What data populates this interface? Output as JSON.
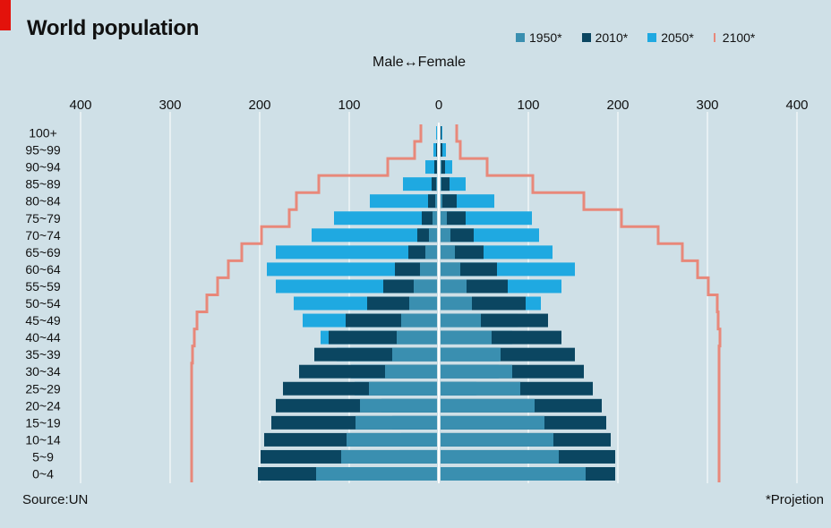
{
  "header": {
    "title": "World population",
    "subtitle": "Male↔Female"
  },
  "legend": [
    {
      "label": "1950*",
      "color": "#3a8fb0"
    },
    {
      "label": "2010*",
      "color": "#0b4661"
    },
    {
      "label": "2050*",
      "color": "#1fa9e1"
    },
    {
      "label": "2100*",
      "color": "#e8887a"
    }
  ],
  "footer": {
    "source": "Source:UN",
    "note": "*Projetion"
  },
  "chart_data": {
    "type": "bar",
    "orientation": "horizontal-population-pyramid",
    "title": "World population",
    "xlabel": "Male↔Female",
    "xlim": [
      -400,
      400
    ],
    "x_ticks": [
      {
        "value": -400,
        "label": "400"
      },
      {
        "value": -300,
        "label": "300"
      },
      {
        "value": -200,
        "label": "200"
      },
      {
        "value": -100,
        "label": "100"
      },
      {
        "value": 0,
        "label": "0"
      },
      {
        "value": 100,
        "label": "100"
      },
      {
        "value": 200,
        "label": "200"
      },
      {
        "value": 300,
        "label": "300"
      },
      {
        "value": 400,
        "label": "400"
      }
    ],
    "grid": true,
    "legend_position": "top-right",
    "categories": [
      "100+",
      "95~99",
      "90~94",
      "85~89",
      "80~84",
      "75~79",
      "70~74",
      "65~69",
      "60~64",
      "55~59",
      "50~54",
      "45~49",
      "40~44",
      "35~39",
      "30~34",
      "25~29",
      "20~24",
      "15~19",
      "10~14",
      "5~9",
      "0~4"
    ],
    "series": [
      {
        "name": "1950*",
        "color": "#3a8fb0",
        "male": [
          0,
          0,
          0,
          1,
          2,
          5,
          9,
          13,
          19,
          26,
          31,
          40,
          45,
          50,
          58,
          76,
          86,
          91,
          101,
          107,
          135
        ],
        "female": [
          0,
          0,
          1,
          1,
          2,
          7,
          11,
          16,
          22,
          29,
          35,
          45,
          57,
          67,
          80,
          89,
          105,
          116,
          126,
          132,
          162
        ]
      },
      {
        "name": "2010*",
        "color": "#0b4661",
        "male": [
          0,
          1,
          3,
          6,
          10,
          17,
          22,
          32,
          47,
          60,
          78,
          102,
          121,
          137,
          154,
          172,
          180,
          185,
          193,
          197,
          200
        ],
        "female": [
          1,
          2,
          5,
          10,
          18,
          28,
          37,
          48,
          63,
          75,
          95,
          120,
          135,
          150,
          160,
          170,
          180,
          185,
          190,
          195,
          195
        ]
      },
      {
        "name": "2050*",
        "color": "#1fa9e1",
        "male": [
          1,
          4,
          13,
          38,
          75,
          115,
          140,
          180,
          190,
          180,
          160,
          150,
          130,
          112,
          96,
          92,
          62,
          50,
          40,
          42,
          42
        ],
        "female": [
          2,
          6,
          13,
          28,
          60,
          102,
          110,
          125,
          150,
          135,
          112,
          86,
          80,
          65,
          65,
          40,
          0,
          0,
          0,
          0,
          0
        ]
      }
    ],
    "outline_2100": {
      "name": "2100*",
      "color": "#e8887a",
      "male": [
        18,
        25,
        55,
        132,
        157,
        165,
        196,
        218,
        233,
        245,
        257,
        268,
        271,
        273,
        274,
        274,
        274,
        274,
        274,
        274,
        274
      ],
      "female": [
        18,
        22,
        52,
        103,
        160,
        202,
        243,
        270,
        287,
        299,
        309,
        310,
        312,
        311,
        311,
        311,
        311,
        311,
        311,
        311,
        311
      ]
    }
  }
}
